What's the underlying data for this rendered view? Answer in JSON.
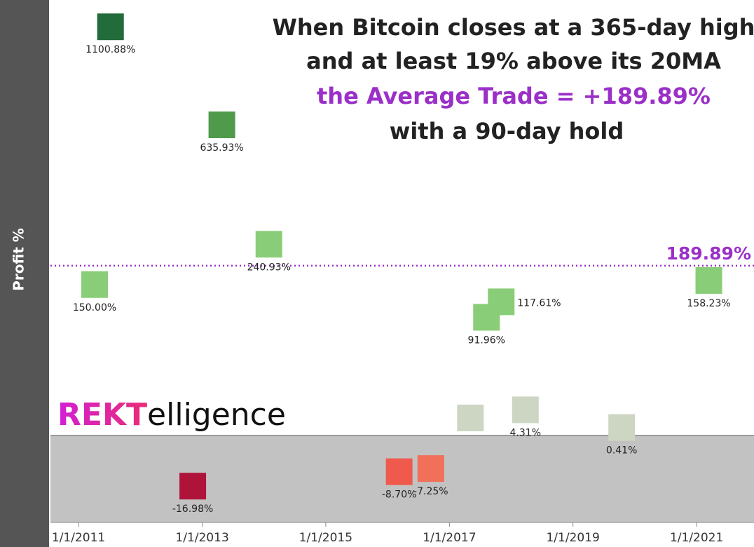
{
  "chart_data": {
    "type": "scatter",
    "title": [
      "When Bitcoin closes at a 365-day high",
      "and at least 19% above its 20MA",
      "the Average Trade = +189.89%",
      "with a 90-day hold"
    ],
    "y_label": "Profit %",
    "logo": [
      "REKT",
      "elligence"
    ],
    "yscale": "sqrt",
    "ylim": [
      -50,
      1250
    ],
    "xlim": [
      "2010-07-19",
      "2021-12-06"
    ],
    "xticks": [
      {
        "value": "2011-01-01",
        "label": "1/1/2011"
      },
      {
        "value": "2013-01-01",
        "label": "1/1/2013"
      },
      {
        "value": "2015-01-01",
        "label": "1/1/2015"
      },
      {
        "value": "2017-01-01",
        "label": "1/1/2017"
      },
      {
        "value": "2019-01-01",
        "label": "1/1/2019"
      },
      {
        "value": "2021-01-01",
        "label": "1/1/2021"
      }
    ],
    "average": {
      "value": 189.89,
      "label": "189.89%",
      "color": "#9b30c8"
    },
    "series": [
      {
        "name": "Profit %",
        "x": [
          "2011-04-06",
          "2011-07-09",
          "2012-11-06",
          "2013-04-27",
          "2014-01-30",
          "2016-03-10",
          "2016-09-13",
          "2017-05-05",
          "2017-08-08",
          "2017-11-03",
          "2018-03-26",
          "2019-10-16",
          "2021-03-14"
        ],
        "values": [
          150.0,
          1100.88,
          -16.98,
          635.93,
          240.93,
          -8.7,
          -7.25,
          2,
          91.96,
          117.61,
          4.31,
          0.41,
          158.23
        ],
        "value_labels": [
          "150.00%",
          "1100.88%",
          "-16.98%",
          "635.93%",
          "240.93%",
          "-8.70%",
          "-7.25%",
          null,
          "91.96%",
          "117.61%",
          "4.31%",
          "0.41%",
          "158.23%"
        ],
        "colors": [
          "#8acd78",
          "#226b3a",
          "#b01339",
          "#4f9a4b",
          "#8acd78",
          "#ef5a4d",
          "#f0705a",
          "#cdd6c3",
          "#8acd78",
          "#8acd78",
          "#cdd6c3",
          "#cdd6c3",
          "#8acd78"
        ]
      }
    ]
  }
}
